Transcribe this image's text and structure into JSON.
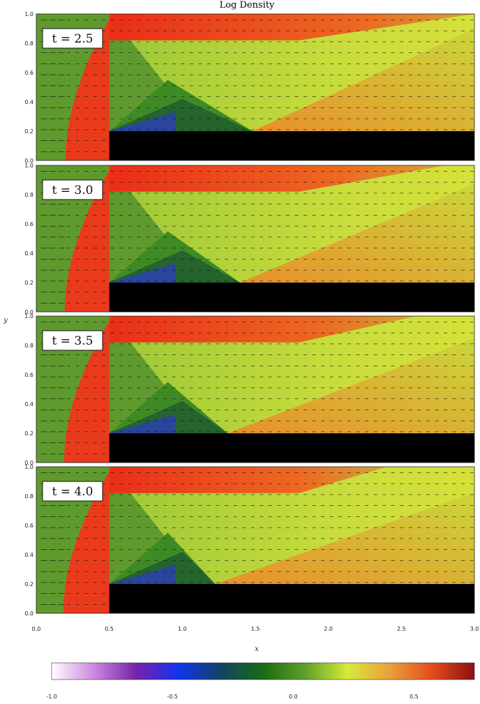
{
  "chart_data": {
    "type": "heatmap",
    "title": "Log Density",
    "xlabel": "x",
    "ylabel": "y",
    "xlim": [
      0.0,
      3.0
    ],
    "ylim": [
      0.0,
      1.0
    ],
    "xticks": [
      "0.0",
      "0.5",
      "1.0",
      "1.5",
      "2.0",
      "2.5",
      "3.0"
    ],
    "yticks": [
      "0.0",
      "0.2",
      "0.4",
      "0.6",
      "0.8",
      "1.0"
    ],
    "step": {
      "x_start": 0.5,
      "height": 0.2
    },
    "panels": [
      {
        "label": "t = 2.5",
        "time": 2.5
      },
      {
        "label": "t = 3.0",
        "time": 3.0
      },
      {
        "label": "t = 3.5",
        "time": 3.5
      },
      {
        "label": "t = 4.0",
        "time": 4.0
      }
    ],
    "colorbar": {
      "range": [
        -1.0,
        0.75
      ],
      "ticks": [
        "-1.0",
        "-0.5",
        "0.0",
        "0.5"
      ],
      "colormap": [
        "#ffffff",
        "#cc88dd",
        "#7722aa",
        "#1133ee",
        "#114466",
        "#1a6a12",
        "#5fa02a",
        "#d7ea3a",
        "#eaa03a",
        "#e34c1c",
        "#8a1010"
      ]
    },
    "overlay": "velocity vectors"
  },
  "colors": {
    "ambient": "#5f9a2e",
    "obstacle": "#000000",
    "shocked": "#ea3a1c"
  }
}
